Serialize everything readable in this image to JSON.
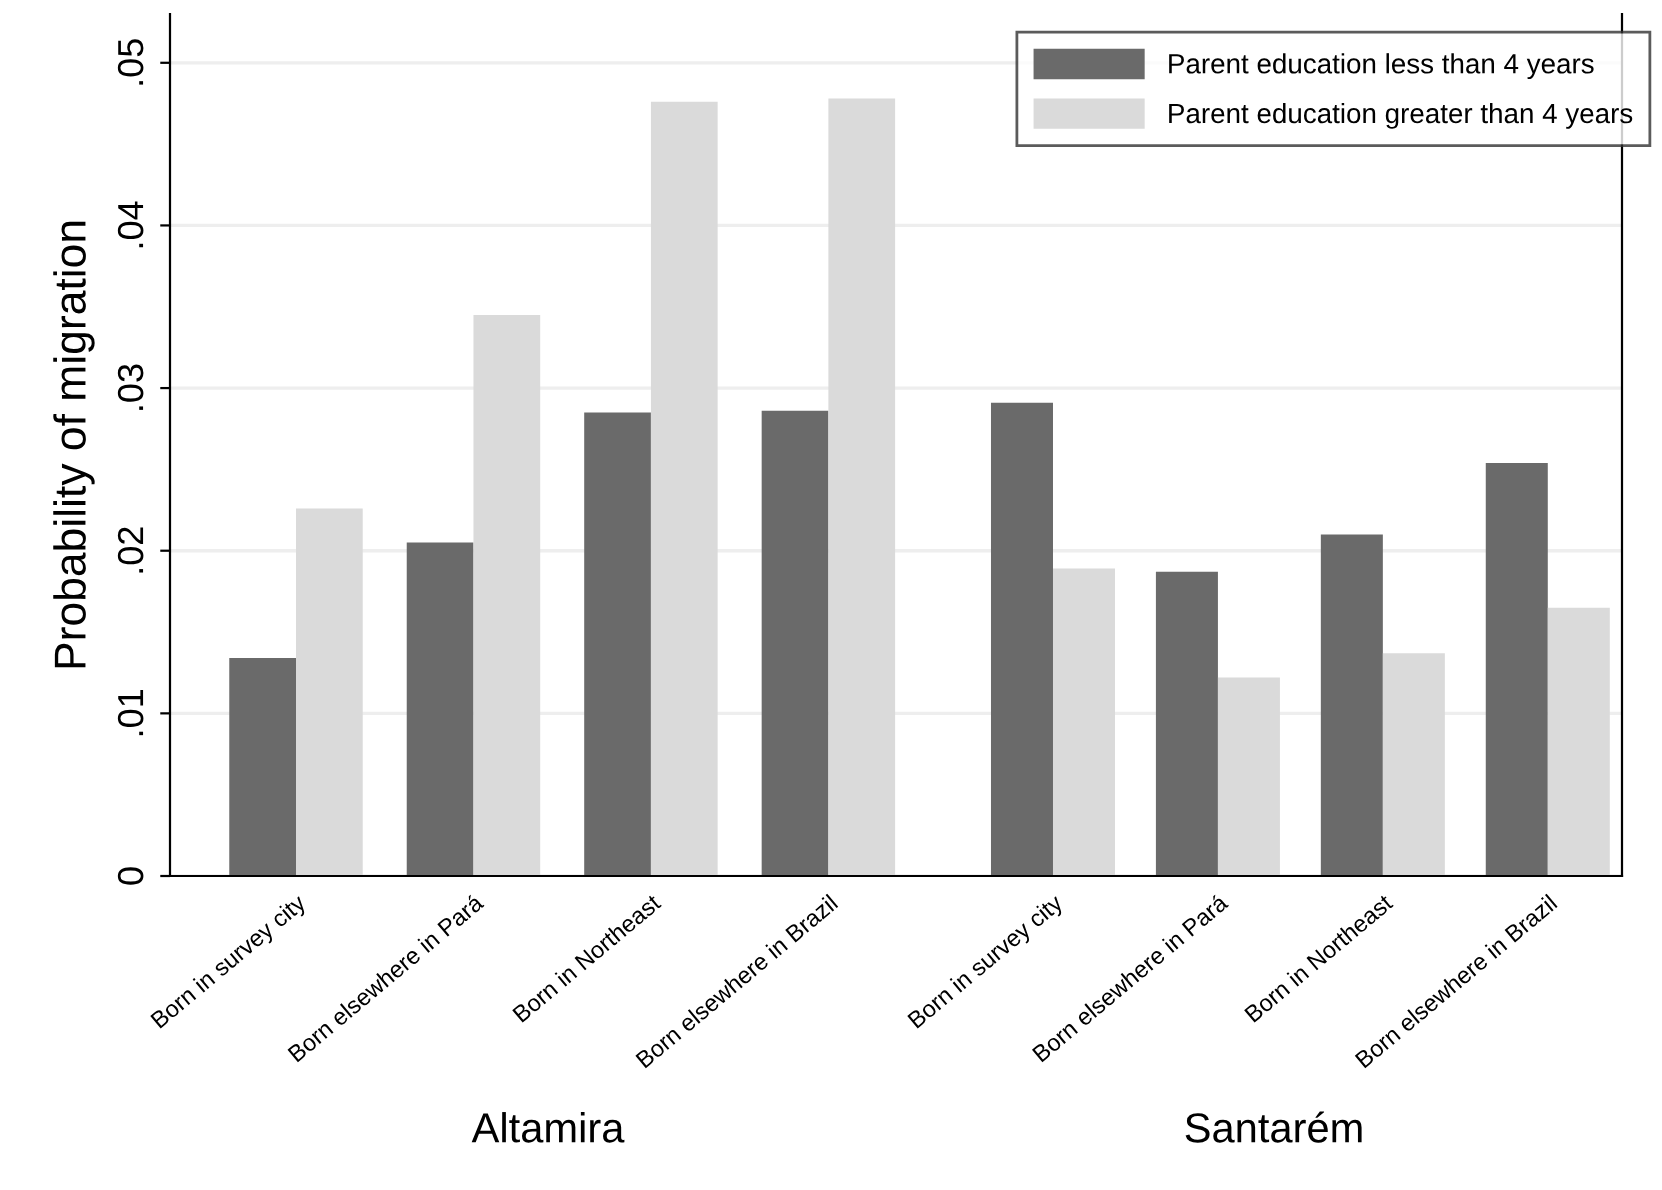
{
  "chart_data": [
    {
      "type": "bar",
      "xlabel": "Altamira",
      "ylabel": "Probability of migration",
      "categories": [
        "Born in survey city",
        "Born elsewhere in Pará",
        "Born in Northeast",
        "Born elsewhere in Brazil"
      ],
      "series": [
        {
          "color": "#6a6a6a",
          "values": [
            0.0134,
            0.0205,
            0.0285,
            0.0286
          ]
        },
        {
          "color": "#dadada",
          "values": [
            0.0226,
            0.0345,
            0.0476,
            0.0478
          ]
        }
      ],
      "ylim": [
        0,
        0.053
      ],
      "yticks": [
        {
          "value": 0,
          "label": "0"
        },
        {
          "value": 0.01,
          "label": ".01"
        },
        {
          "value": 0.02,
          "label": ".02"
        },
        {
          "value": 0.03,
          "label": ".03"
        },
        {
          "value": 0.04,
          "label": ".04"
        },
        {
          "value": 0.05,
          "label": ".05"
        }
      ],
      "grid": "y"
    },
    {
      "type": "bar",
      "xlabel": "Santarém",
      "categories": [
        "Born in survey city",
        "Born elsewhere in Pará",
        "Born in Northeast",
        "Born elsewhere in Brazil"
      ],
      "series": [
        {
          "name": "Parent education less than 4 years",
          "color": "#6a6a6a",
          "values": [
            0.0291,
            0.0187,
            0.021,
            0.0254
          ]
        },
        {
          "name": "Parent education greater than 4 years",
          "color": "#dadada",
          "values": [
            0.0189,
            0.0122,
            0.0137,
            0.0165
          ]
        }
      ],
      "ylim": [
        0,
        0.053
      ],
      "grid": "y",
      "legend": "top right",
      "tick_labels": "x"
    }
  ]
}
